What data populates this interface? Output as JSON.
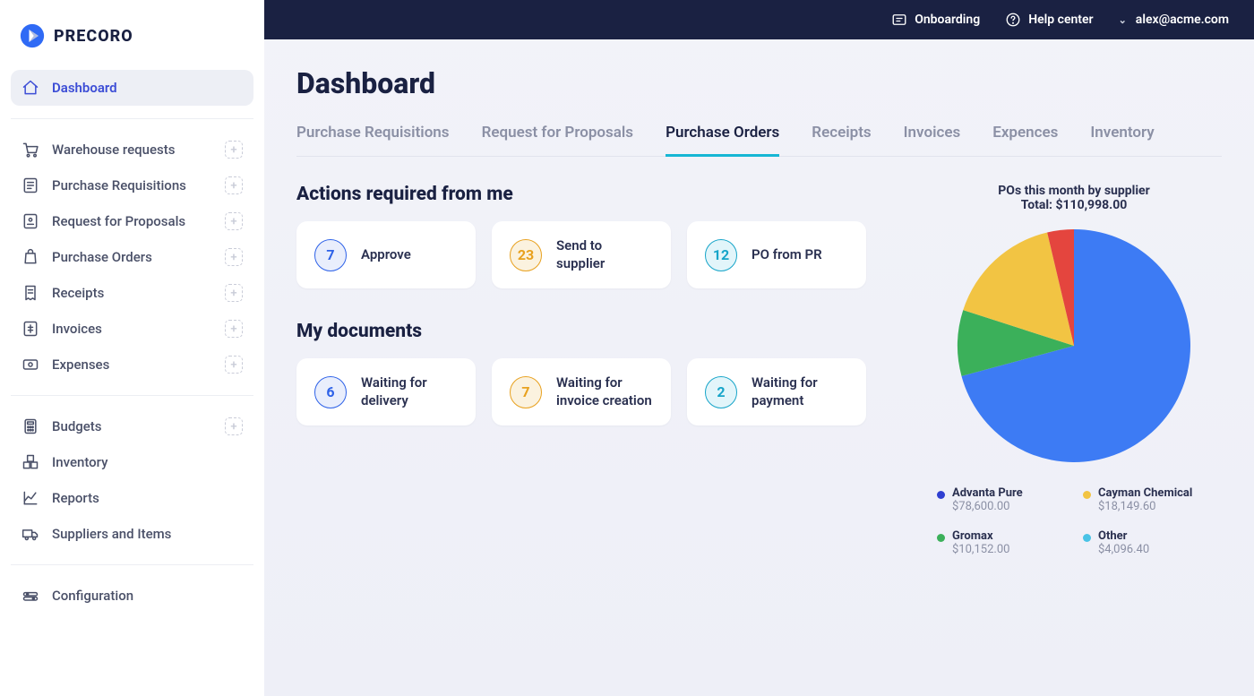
{
  "brand": {
    "name": "PRECORO"
  },
  "topbar": {
    "onboarding": "Onboarding",
    "help": "Help center",
    "user_email": "alex@acme.com"
  },
  "sidebar": {
    "main": {
      "label": "Dashboard",
      "icon": "home-icon",
      "active": true
    },
    "groups": [
      [
        {
          "label": "Warehouse requests",
          "icon": "cart-icon",
          "add": true
        },
        {
          "label": "Purchase Requisitions",
          "icon": "requisition-icon",
          "add": true
        },
        {
          "label": "Request for Proposals",
          "icon": "proposal-icon",
          "add": true
        },
        {
          "label": "Purchase Orders",
          "icon": "bag-icon",
          "add": true
        },
        {
          "label": "Receipts",
          "icon": "receipt-icon",
          "add": true
        },
        {
          "label": "Invoices",
          "icon": "invoice-icon",
          "add": true
        },
        {
          "label": "Expenses",
          "icon": "expense-icon",
          "add": true
        }
      ],
      [
        {
          "label": "Budgets",
          "icon": "calculator-icon",
          "add": true
        },
        {
          "label": "Inventory",
          "icon": "boxes-icon",
          "add": false
        },
        {
          "label": "Reports",
          "icon": "chart-icon",
          "add": false
        },
        {
          "label": "Suppliers and Items",
          "icon": "truck-icon",
          "add": false
        }
      ],
      [
        {
          "label": "Configuration",
          "icon": "settings-icon",
          "add": false
        }
      ]
    ]
  },
  "page": {
    "title": "Dashboard",
    "tabs": [
      {
        "label": "Purchase Requisitions",
        "active": false
      },
      {
        "label": "Request for Proposals",
        "active": false
      },
      {
        "label": "Purchase Orders",
        "active": true
      },
      {
        "label": "Receipts",
        "active": false
      },
      {
        "label": "Invoices",
        "active": false
      },
      {
        "label": "Expences",
        "active": false
      },
      {
        "label": "Inventory",
        "active": false
      }
    ]
  },
  "sections": {
    "actions": {
      "title": "Actions required from me",
      "cards": [
        {
          "count": "7",
          "label": "Approve",
          "color": "#2e62e8",
          "bg": "#e9eefc"
        },
        {
          "count": "23",
          "label": "Send to supplier",
          "color": "#e8a11f",
          "bg": "#fbf2df"
        },
        {
          "count": "12",
          "label": "PO from PR",
          "color": "#17a5c9",
          "bg": "#e2f5fa"
        }
      ]
    },
    "documents": {
      "title": "My documents",
      "cards": [
        {
          "count": "6",
          "label": "Waiting for delivery",
          "color": "#2e62e8",
          "bg": "#e9eefc"
        },
        {
          "count": "7",
          "label": "Waiting for invoice creation",
          "color": "#e8a11f",
          "bg": "#fbf2df"
        },
        {
          "count": "2",
          "label": "Waiting for payment",
          "color": "#17a5c9",
          "bg": "#e2f5fa"
        }
      ]
    }
  },
  "chart": {
    "type": "pie",
    "title": "POs this month by supplier",
    "total_label": "Total: $110,998.00",
    "radius": 130,
    "background_color": "#ffffff",
    "slices": [
      {
        "name": "Advanta Pure",
        "value": 78600.0,
        "value_label": "$78,600.00",
        "color": "#3d7bf4",
        "legend_dot": "#2f3fd1"
      },
      {
        "name": "Cayman Chemical",
        "value": 18149.6,
        "value_label": "$18,149.60",
        "color": "#f2c443",
        "legend_dot": "#f2c443"
      },
      {
        "name": "Gromax",
        "value": 10152.0,
        "value_label": "$10,152.00",
        "color": "#3bb05a",
        "legend_dot": "#3bb05a"
      },
      {
        "name": "Other",
        "value": 4096.4,
        "value_label": "$4,096.40",
        "color": "#e4453e",
        "legend_dot": "#49c3e6"
      }
    ],
    "start_angle_deg": -90
  }
}
